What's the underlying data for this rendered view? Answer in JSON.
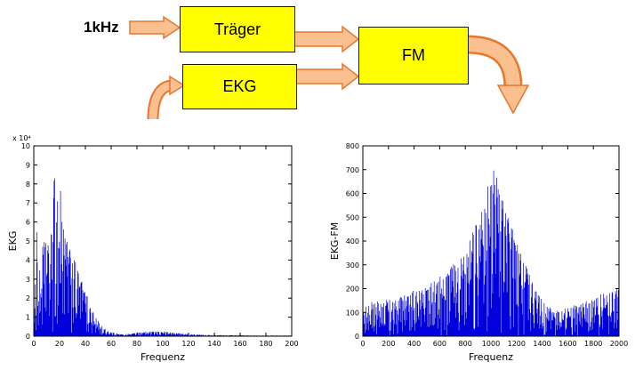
{
  "figure": {
    "background": "#ffffff"
  },
  "diagram": {
    "input_label": "1kHz",
    "blocks": {
      "traeger": "Träger",
      "ekg": "EKG",
      "fm": "FM"
    },
    "colors": {
      "block_fill": "#ffff00",
      "block_border": "#1a1a00",
      "arrow_fill": "#fac08f",
      "arrow_border": "#e8772e"
    }
  },
  "chart_data": [
    {
      "type": "line",
      "title": "",
      "xlabel": "Frequenz",
      "ylabel": "EKG",
      "y_scale_label": "x 10⁴",
      "xlim": [
        0,
        200
      ],
      "ylim": [
        0,
        10
      ],
      "xticks": [
        0,
        20,
        40,
        60,
        80,
        100,
        120,
        140,
        160,
        180,
        200
      ],
      "yticks": [
        0,
        1,
        2,
        3,
        4,
        5,
        6,
        7,
        8,
        9,
        10
      ],
      "grid": false,
      "legend": "none",
      "line_color": "#0000dd",
      "envelope_x": [
        0,
        1,
        2,
        3,
        4,
        6,
        8,
        10,
        12,
        14,
        16,
        18,
        20,
        22,
        24,
        26,
        28,
        30,
        33,
        36,
        40,
        44,
        48,
        52,
        56,
        60,
        65,
        70,
        75,
        80,
        85,
        90,
        95,
        100,
        105,
        110,
        115,
        120,
        130,
        140,
        150,
        160,
        170,
        180,
        190,
        200
      ],
      "envelope_y": [
        0.3,
        2.0,
        7.2,
        3.5,
        3.0,
        4.5,
        5.0,
        5.2,
        4.6,
        5.8,
        8.7,
        7.0,
        8.5,
        6.8,
        5.5,
        5.0,
        4.6,
        4.2,
        3.8,
        3.2,
        2.4,
        1.6,
        1.0,
        0.6,
        0.35,
        0.22,
        0.14,
        0.1,
        0.14,
        0.2,
        0.22,
        0.25,
        0.25,
        0.25,
        0.22,
        0.18,
        0.15,
        0.12,
        0.08,
        0.06,
        0.05,
        0.05,
        0.04,
        0.04,
        0.04,
        0.04
      ]
    },
    {
      "type": "line",
      "title": "",
      "xlabel": "Frequenz",
      "ylabel": "EKG-FM",
      "xlim": [
        0,
        2000
      ],
      "ylim": [
        0,
        800
      ],
      "xticks": [
        0,
        200,
        400,
        600,
        800,
        1000,
        1200,
        1400,
        1600,
        1800,
        2000
      ],
      "yticks": [
        0,
        100,
        200,
        300,
        400,
        500,
        600,
        700,
        800
      ],
      "grid": false,
      "legend": "none",
      "line_color": "#0000dd",
      "envelope_x": [
        0,
        50,
        100,
        150,
        200,
        250,
        300,
        350,
        400,
        450,
        500,
        550,
        600,
        650,
        700,
        750,
        800,
        850,
        900,
        950,
        1000,
        1030,
        1060,
        1100,
        1150,
        1200,
        1250,
        1300,
        1350,
        1400,
        1450,
        1500,
        1550,
        1600,
        1650,
        1700,
        1750,
        1800,
        1850,
        1900,
        1950,
        2000
      ],
      "envelope_y": [
        110,
        140,
        150,
        145,
        160,
        150,
        170,
        180,
        200,
        195,
        215,
        235,
        255,
        275,
        300,
        330,
        380,
        430,
        500,
        570,
        690,
        710,
        640,
        560,
        480,
        400,
        330,
        260,
        205,
        160,
        125,
        110,
        112,
        120,
        130,
        140,
        150,
        160,
        175,
        190,
        205,
        215
      ]
    }
  ]
}
